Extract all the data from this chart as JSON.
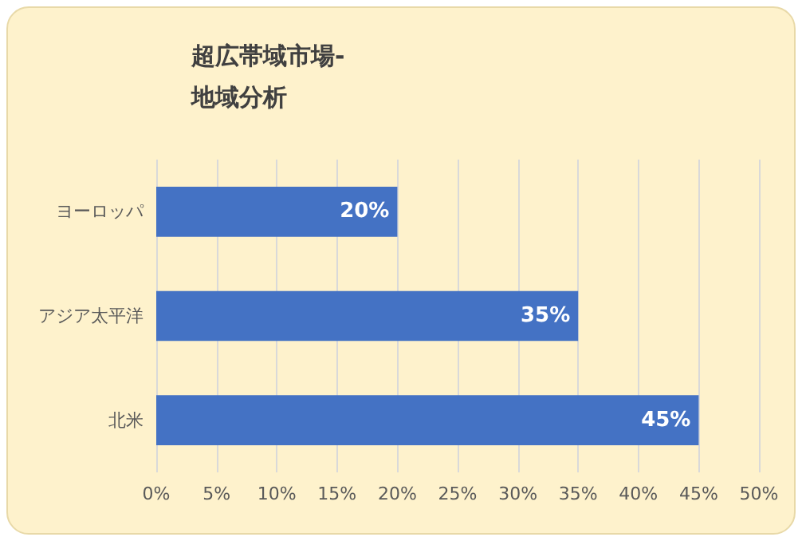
{
  "chart_data": {
    "type": "bar",
    "orientation": "horizontal",
    "title": "超広帯域市場-地域分析",
    "categories": [
      "ヨーロッパ",
      "アジア太平洋",
      "北米"
    ],
    "values": [
      20,
      35,
      45
    ],
    "value_labels": [
      "20%",
      "35%",
      "45%"
    ],
    "color": "#4472c4",
    "xlim": [
      0,
      50
    ],
    "xticks": [
      {
        "value": 0,
        "label": "0%"
      },
      {
        "value": 5,
        "label": "5%"
      },
      {
        "value": 10,
        "label": "10%"
      },
      {
        "value": 15,
        "label": "15%"
      },
      {
        "value": 20,
        "label": "20%"
      },
      {
        "value": 25,
        "label": "25%"
      },
      {
        "value": 30,
        "label": "30%"
      },
      {
        "value": 35,
        "label": "35%"
      },
      {
        "value": 40,
        "label": "40%"
      },
      {
        "value": 45,
        "label": "45%"
      },
      {
        "value": 50,
        "label": "50%"
      }
    ],
    "grid": "x"
  }
}
